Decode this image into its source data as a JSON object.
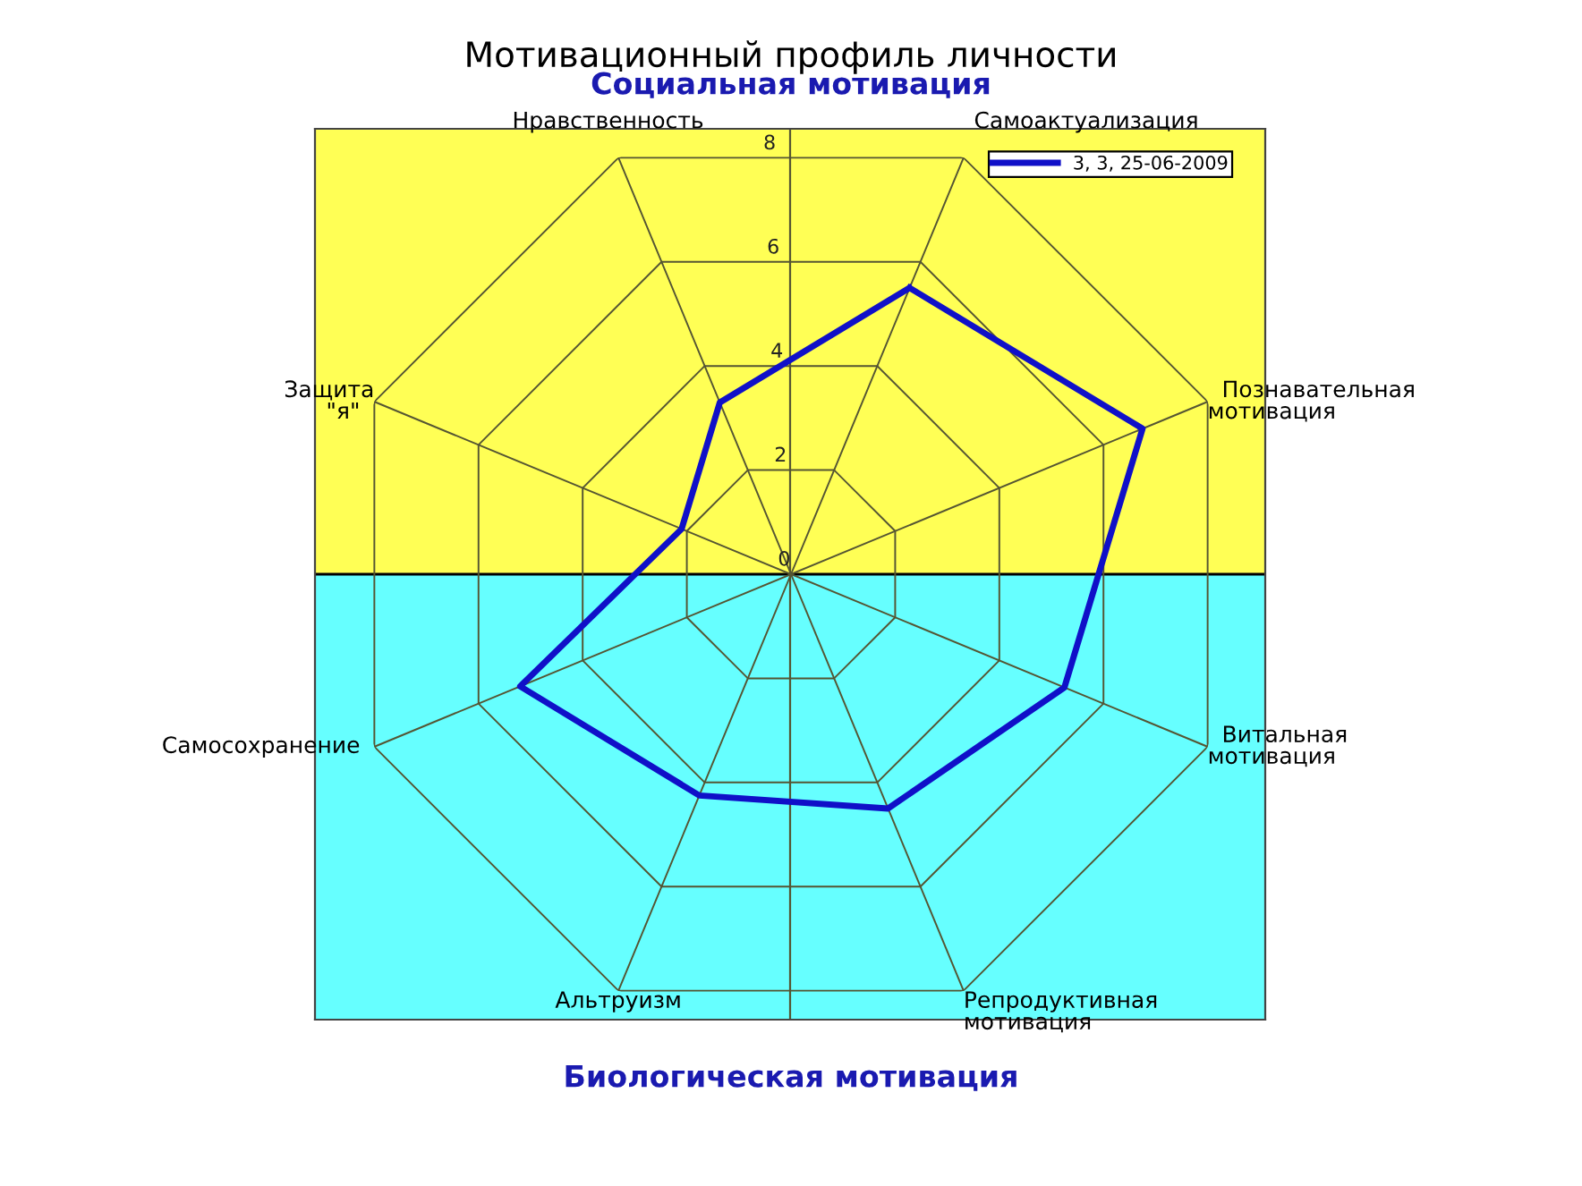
{
  "chart_data": {
    "type": "radar",
    "title": "Мотивационный профиль личности",
    "subtitle": "Социальная мотивация",
    "annotations": [
      "Биологическая мотивация"
    ],
    "categories": [
      "Самоактуализация",
      "Познавательная\nмотивация",
      "Витальная\nмотивация",
      "Репродуктивная\nмотивация",
      "Альтруизм",
      "Самосохранение",
      "Защита\n\"я\"",
      "Нравственность"
    ],
    "series": [
      {
        "name": "3, 3, 25-06-2009",
        "color": "#1010c8",
        "values": [
          5.5,
          6.75,
          5.25,
          4.5,
          4.25,
          5.2,
          2.1,
          3.3
        ]
      }
    ],
    "ylim": [
      0,
      8
    ],
    "yticks": [
      0,
      2,
      4,
      6,
      8
    ],
    "legend": "top right",
    "marker": "none",
    "line_style": "solid"
  }
}
